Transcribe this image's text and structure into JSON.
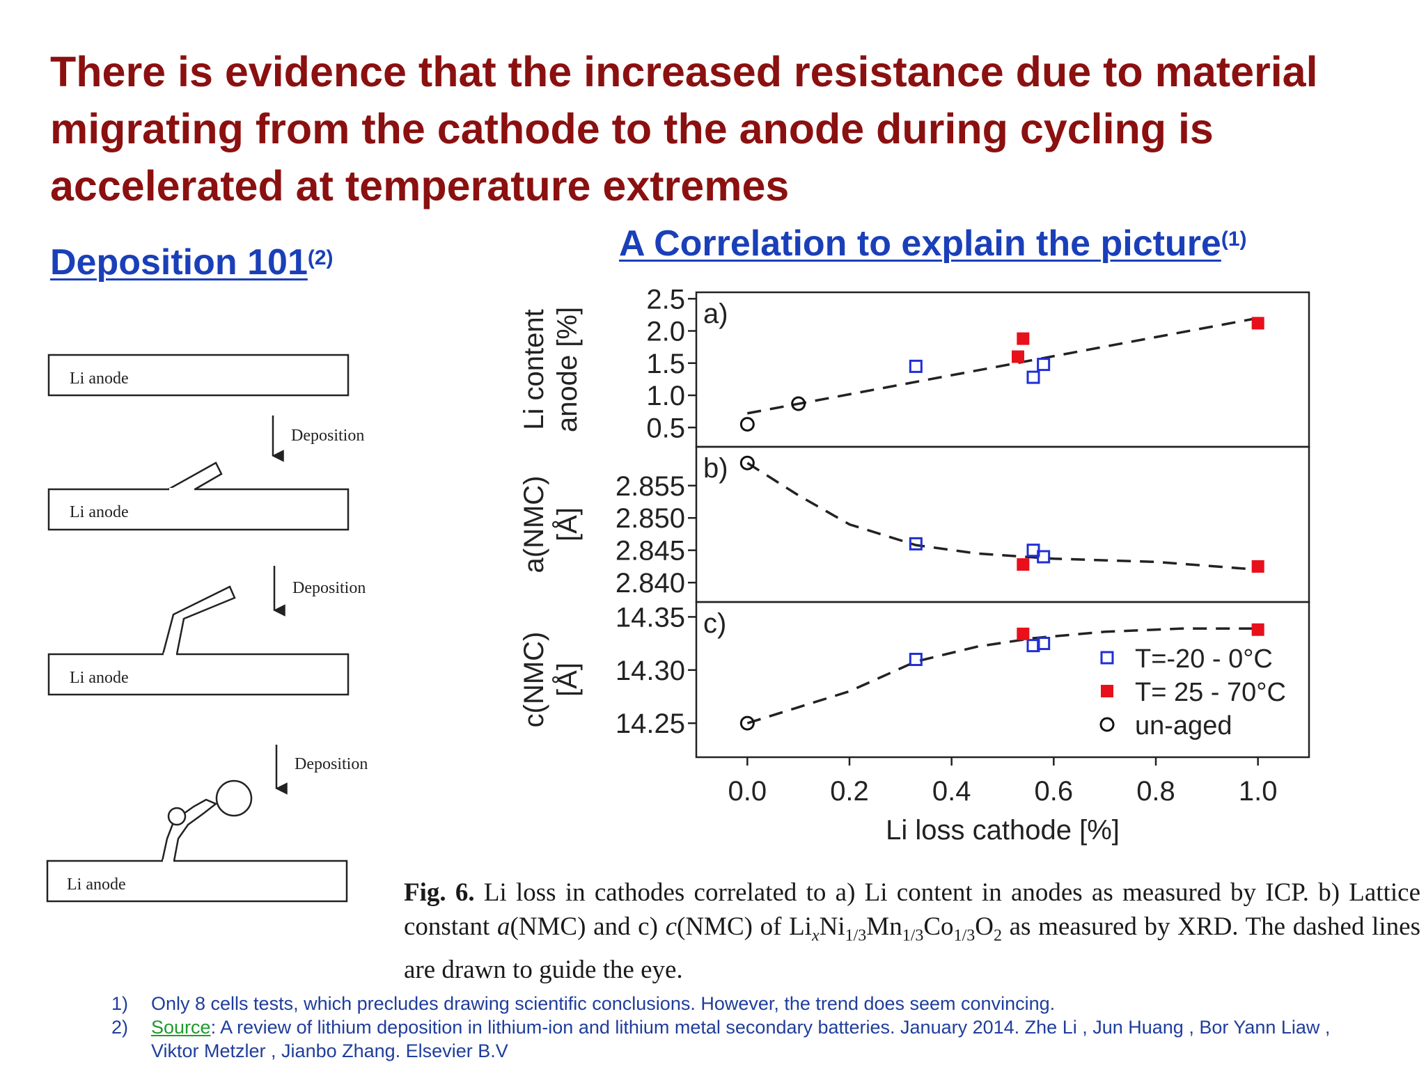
{
  "slide": {
    "title": "There is evidence that the increased resistance due to material migrating from the cathode to the anode during cycling is accelerated at temperature extremes",
    "left_heading": "Deposition 101",
    "left_heading_sup": "(2)",
    "right_heading": "A Correlation to explain the picture",
    "right_heading_sup": "(1)"
  },
  "diagram": {
    "anode_label": "Li anode",
    "arrow_label": "Deposition"
  },
  "caption": {
    "fig_label": "Fig. 6.",
    "text_1": "Li loss in cathodes correlated to a) Li content in anodes as measured by ICP. b) Lattice constant ",
    "a_sym": "a",
    "text_2": "(NMC) and c) ",
    "c_sym": "c",
    "text_3": "(NMC) of Li",
    "x_sym": "x",
    "text_4": "Ni",
    "frac": "1/3",
    "text_5": "Mn",
    "text_6": "Co",
    "text_7": "O",
    "two": "2",
    "text_8": " as measured by XRD. The dashed lines are drawn to guide the eye."
  },
  "footnotes": [
    {
      "num": "1)",
      "text": "Only 8 cells tests, which precludes drawing scientific conclusions. However, the trend does seem convincing."
    },
    {
      "num": "2)",
      "link": "Source",
      "text": ": A review of lithium deposition in lithium-ion and lithium metal secondary batteries. January 2014. Zhe Li , Jun Huang , Bor Yann Liaw , Viktor Metzler , Jianbo Zhang. Elsevier B.V"
    }
  ],
  "chart_data": {
    "type": "scatter",
    "xlabel": "Li loss cathode [%]",
    "xlim": [
      -0.1,
      1.1
    ],
    "xticks": [
      "0.0",
      "0.2",
      "0.4",
      "0.6",
      "0.8",
      "1.0"
    ],
    "legend": {
      "placement": "bottom-right of panel c",
      "entries": [
        {
          "name": "T=-20 - 0°C",
          "series": "cold"
        },
        {
          "name": "T= 25 - 70°C",
          "series": "hot"
        },
        {
          "name": "un-aged",
          "series": "unaged"
        }
      ]
    },
    "colors": {
      "cold": "#1f2fd6",
      "hot": "#e8101a",
      "unaged": "#111111"
    },
    "panels": [
      {
        "tag": "a)",
        "ylabel_lines": [
          "Li content",
          "anode [%]"
        ],
        "ylim": [
          0.2,
          2.6
        ],
        "yticks": [
          "0.5",
          "1.0",
          "1.5",
          "2.0",
          "2.5"
        ],
        "trend": [
          [
            0.0,
            0.72
          ],
          [
            1.0,
            2.2
          ]
        ],
        "series": {
          "cold": [
            [
              0.33,
              1.45
            ],
            [
              0.56,
              1.28
            ],
            [
              0.58,
              1.48
            ]
          ],
          "hot": [
            [
              0.53,
              1.6
            ],
            [
              0.54,
              1.88
            ],
            [
              1.0,
              2.12
            ]
          ],
          "unaged": [
            [
              0.0,
              0.55
            ],
            [
              0.1,
              0.87
            ]
          ]
        }
      },
      {
        "tag": "b)",
        "ylabel_lines": [
          "a(NMC)",
          "[Å]"
        ],
        "ylim": [
          2.837,
          2.861
        ],
        "yticks": [
          "2.840",
          "2.845",
          "2.850",
          "2.855"
        ],
        "trend": [
          [
            0.0,
            2.8585
          ],
          [
            0.1,
            2.8535
          ],
          [
            0.2,
            2.849
          ],
          [
            0.33,
            2.8458
          ],
          [
            0.45,
            2.8445
          ],
          [
            0.6,
            2.8437
          ],
          [
            0.8,
            2.8432
          ],
          [
            1.0,
            2.842
          ]
        ],
        "series": {
          "cold": [
            [
              0.33,
              2.846
            ],
            [
              0.56,
              2.845
            ],
            [
              0.58,
              2.844
            ]
          ],
          "hot": [
            [
              0.54,
              2.8428
            ],
            [
              1.0,
              2.8425
            ]
          ],
          "unaged": [
            [
              0.0,
              2.8585
            ]
          ]
        }
      },
      {
        "tag": "c)",
        "ylabel_lines": [
          "c(NMC)",
          "[Å]"
        ],
        "ylim": [
          14.218,
          14.364
        ],
        "yticks": [
          "14.25",
          "14.30",
          "14.35"
        ],
        "trend": [
          [
            0.0,
            14.25
          ],
          [
            0.2,
            14.28
          ],
          [
            0.33,
            14.308
          ],
          [
            0.45,
            14.322
          ],
          [
            0.56,
            14.33
          ],
          [
            0.7,
            14.336
          ],
          [
            0.85,
            14.339
          ],
          [
            1.0,
            14.339
          ]
        ],
        "series": {
          "cold": [
            [
              0.33,
              14.31
            ],
            [
              0.56,
              14.323
            ],
            [
              0.58,
              14.325
            ]
          ],
          "hot": [
            [
              0.54,
              14.334
            ],
            [
              1.0,
              14.338
            ]
          ],
          "unaged": [
            [
              0.0,
              14.25
            ]
          ]
        }
      }
    ]
  }
}
